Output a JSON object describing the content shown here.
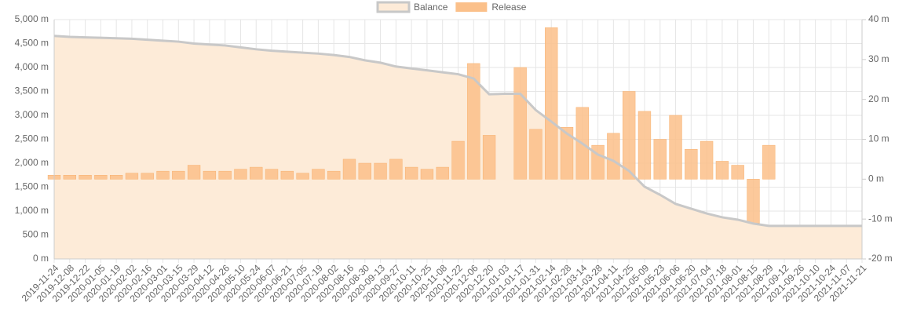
{
  "chart_data": {
    "type": "bar-line",
    "categories": [
      "2019-11-24",
      "2019-12-08",
      "2019-12-22",
      "2020-01-05",
      "2020-01-19",
      "2020-02-02",
      "2020-02-16",
      "2020-03-01",
      "2020-03-15",
      "2020-03-29",
      "2020-04-12",
      "2020-04-26",
      "2020-05-10",
      "2020-05-24",
      "2020-06-07",
      "2020-06-21",
      "2020-07-05",
      "2020-07-19",
      "2020-08-02",
      "2020-08-16",
      "2020-08-30",
      "2020-09-13",
      "2020-09-27",
      "2020-10-11",
      "2020-10-25",
      "2020-11-08",
      "2020-11-22",
      "2020-12-06",
      "2020-12-20",
      "2021-01-03",
      "2021-01-17",
      "2021-01-31",
      "2021-02-14",
      "2021-02-28",
      "2021-03-14",
      "2021-03-28",
      "2021-04-11",
      "2021-04-25",
      "2021-05-09",
      "2021-05-23",
      "2021-06-06",
      "2021-06-20",
      "2021-07-04",
      "2021-07-18",
      "2021-08-01",
      "2021-08-15",
      "2021-08-29",
      "2021-09-12",
      "2021-09-26",
      "2021-10-10",
      "2021-10-24",
      "2021-11-07",
      "2021-11-21"
    ],
    "series": [
      {
        "name": "Balance",
        "kind": "line",
        "color": "#c8c8c8",
        "fill": "#fdebd8",
        "axis": "y",
        "values": [
          4660,
          4640,
          4630,
          4620,
          4610,
          4600,
          4580,
          4560,
          4540,
          4500,
          4480,
          4460,
          4420,
          4380,
          4350,
          4330,
          4310,
          4290,
          4260,
          4220,
          4150,
          4100,
          4020,
          3980,
          3940,
          3900,
          3860,
          3770,
          3440,
          3450,
          3450,
          3110,
          2870,
          2620,
          2410,
          2180,
          2050,
          1840,
          1510,
          1340,
          1150,
          1050,
          950,
          870,
          820,
          740,
          690,
          690,
          690,
          690,
          690,
          690,
          690
        ]
      },
      {
        "name": "Release",
        "kind": "bar",
        "color": "#fbc08a",
        "axis": "y2",
        "values": [
          1,
          1,
          1,
          1,
          1,
          1.5,
          1.5,
          2,
          2,
          3.5,
          2,
          2,
          2.5,
          3,
          2.5,
          2,
          1.5,
          2.5,
          2,
          5,
          4,
          4,
          5,
          3,
          2.5,
          3,
          9.5,
          29,
          11,
          null,
          28,
          12.5,
          38,
          13,
          18,
          8.5,
          11.5,
          22,
          17,
          10,
          16,
          7.5,
          9.5,
          4.5,
          3.5,
          -11,
          8.5,
          null,
          null,
          null,
          null,
          null,
          null
        ]
      }
    ],
    "ylim": [
      0,
      5000
    ],
    "yticks": [
      {
        "value": 0,
        "label": "0 m"
      },
      {
        "value": 500,
        "label": "500 m"
      },
      {
        "value": 1000,
        "label": "1,000 m"
      },
      {
        "value": 1500,
        "label": "1,500 m"
      },
      {
        "value": 2000,
        "label": "2,000 m"
      },
      {
        "value": 2500,
        "label": "2,500 m"
      },
      {
        "value": 3000,
        "label": "3,000 m"
      },
      {
        "value": 3500,
        "label": "3,500 m"
      },
      {
        "value": 4000,
        "label": "4,000 m"
      },
      {
        "value": 4500,
        "label": "4,500 m"
      },
      {
        "value": 5000,
        "label": "5,000 m"
      }
    ],
    "y2lim": [
      -20,
      40
    ],
    "y2ticks": [
      {
        "value": -20,
        "label": "-20 m"
      },
      {
        "value": -10,
        "label": "-10 m"
      },
      {
        "value": 0,
        "label": "0 m"
      },
      {
        "value": 10,
        "label": "10 m"
      },
      {
        "value": 20,
        "label": "20 m"
      },
      {
        "value": 30,
        "label": "30 m"
      },
      {
        "value": 40,
        "label": "40 m"
      }
    ],
    "grid": true,
    "legend": "top"
  }
}
